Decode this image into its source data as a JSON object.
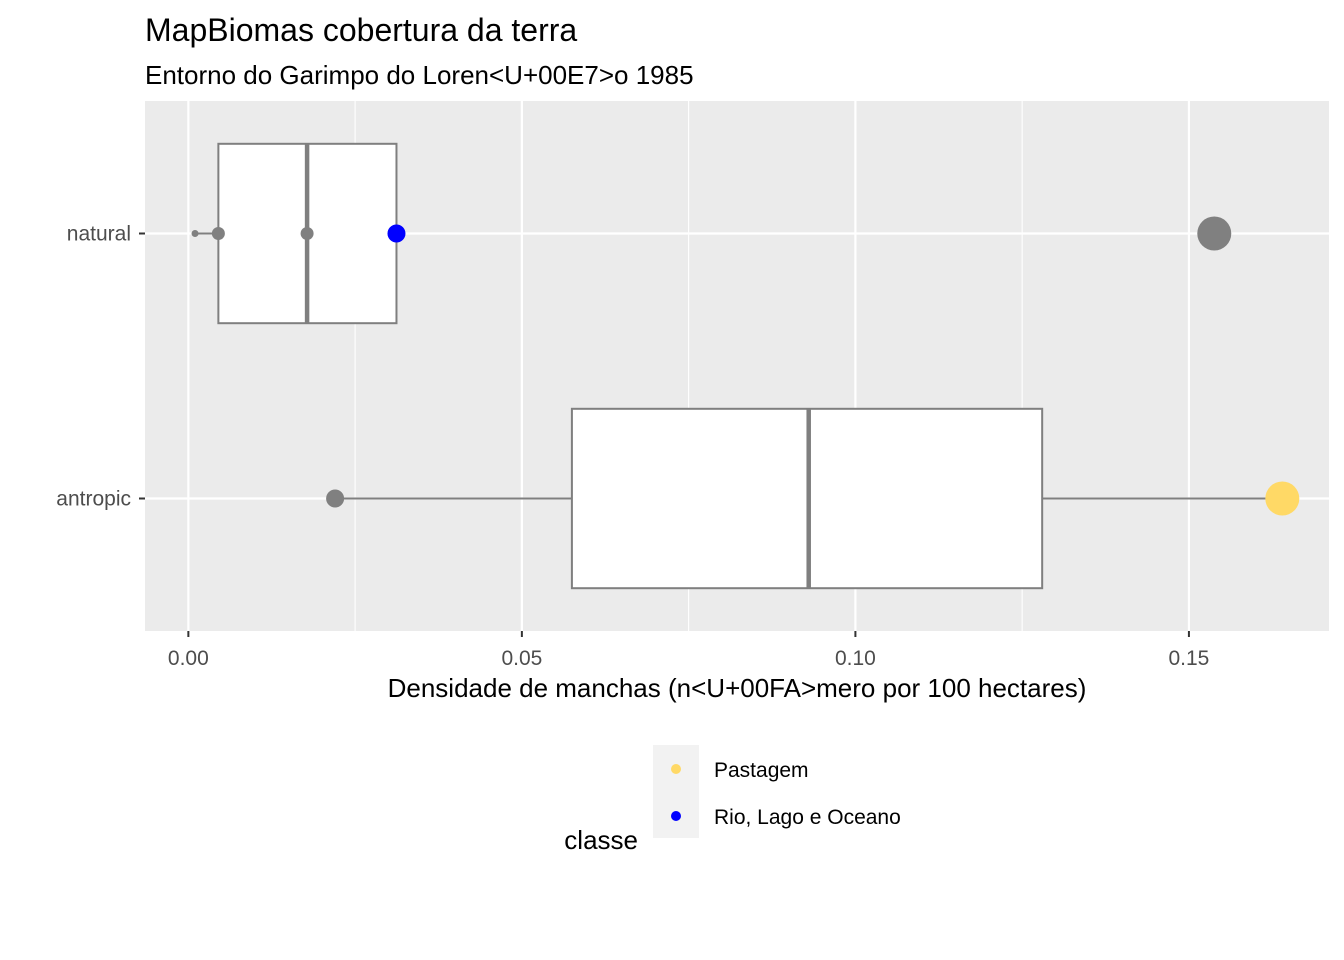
{
  "chart_data": {
    "type": "boxplot",
    "title": "MapBiomas cobertura da terra",
    "subtitle": "Entorno do Garimpo do Loren<U+00E7>o 1985",
    "xlabel": "Densidade de manchas (n<U+00FA>mero por 100 hectares)",
    "ylabel": "",
    "xlim": [
      -0.0065,
      0.171
    ],
    "x_ticks": [
      0.0,
      0.05,
      0.1,
      0.15
    ],
    "x_tick_labels": [
      "0.00",
      "0.05",
      "0.10",
      "0.15"
    ],
    "categories": [
      "natural",
      "antropic"
    ],
    "boxes": [
      {
        "category": "natural",
        "whisker_low": 0.001,
        "q1": 0.0045,
        "median": 0.0178,
        "q3": 0.0312,
        "whisker_high": 0.0312
      },
      {
        "category": "antropic",
        "whisker_low": 0.022,
        "q1": 0.0575,
        "median": 0.093,
        "q3": 0.128,
        "whisker_high": 0.164
      }
    ],
    "points": [
      {
        "category": "natural",
        "x": 0.001,
        "size": "tiny",
        "color": "#808080"
      },
      {
        "category": "natural",
        "x": 0.0045,
        "size": "small",
        "color": "#808080"
      },
      {
        "category": "natural",
        "x": 0.0178,
        "size": "small",
        "color": "#808080"
      },
      {
        "category": "natural",
        "x": 0.0312,
        "size": "medium",
        "color": "#0000ff",
        "classe": "Rio, Lago e Oceano"
      },
      {
        "category": "natural",
        "x": 0.1538,
        "size": "large",
        "color": "#808080"
      },
      {
        "category": "antropic",
        "x": 0.022,
        "size": "medium",
        "color": "#808080"
      },
      {
        "category": "antropic",
        "x": 0.164,
        "size": "large",
        "color": "#ffd966",
        "classe": "Pastagem"
      }
    ],
    "legend": {
      "title": "classe",
      "position": "bottom",
      "entries": [
        {
          "label": "Pastagem",
          "color": "#ffd966"
        },
        {
          "label": "Rio, Lago e Oceano",
          "color": "#0000ff"
        }
      ]
    },
    "colors": {
      "panel_bg": "#ebebeb",
      "grid": "#ffffff",
      "box_line": "#7f7f7f",
      "box_fill": "#ffffff",
      "default_point": "#808080"
    },
    "grid": true
  }
}
